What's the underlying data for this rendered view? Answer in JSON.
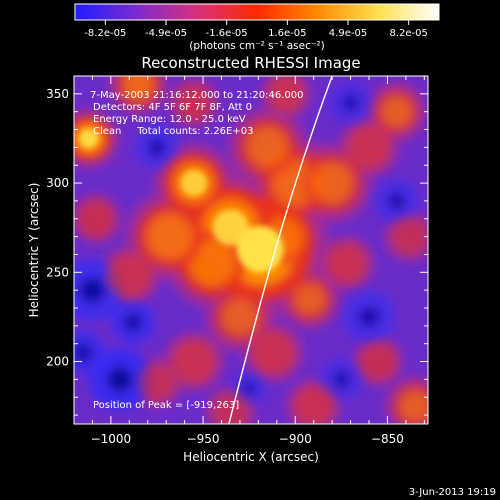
{
  "colorbar": {
    "tick_labels": [
      "-8.2e-05",
      "-4.9e-05",
      "-1.6e-05",
      "1.6e-05",
      "4.9e-05",
      "8.2e-05"
    ],
    "unit_label": "(photons cm⁻² s⁻¹ asec⁻²)",
    "range": [
      -8.2e-05,
      8.2e-05
    ],
    "stops": [
      "#1e1eff",
      "#7a2ad0",
      "#d8307e",
      "#ff2a00",
      "#ff8a00",
      "#ffe050",
      "#ffffff"
    ]
  },
  "chart_data": {
    "type": "heatmap",
    "title": "Reconstructed RHESSI Image",
    "xlabel": "Heliocentric X (arcsec)",
    "ylabel": "Heliocentric Y (arcsec)",
    "xlim": [
      -1020,
      -828
    ],
    "ylim": [
      165,
      360
    ],
    "x_ticks": [
      -1000,
      -950,
      -900,
      -850
    ],
    "y_ticks": [
      200,
      250,
      300,
      350
    ],
    "x_tick_labels": [
      "−1000",
      "−950",
      "−900",
      "−850"
    ],
    "y_tick_labels": [
      "200",
      "250",
      "300",
      "350"
    ],
    "annotations": [
      "7-May-2003 21:16:12.000 to 21:20:46.000",
      "Detectors: 4F 5F 6F 7F 8F, Att 0",
      "Energy Range: 12.0 - 25.0 keV",
      "Clean     Total counts: 2.26E+03"
    ],
    "peak_label": "Position of Peak = [-919,263]",
    "peak": [
      -919,
      263
    ],
    "limb_curve": [
      [
        -936,
        165
      ],
      [
        -920,
        230
      ],
      [
        -905,
        290
      ],
      [
        -880,
        360
      ]
    ],
    "blobs": [
      {
        "x": -919,
        "y": 263,
        "r": 28,
        "a": 1.0
      },
      {
        "x": -935,
        "y": 275,
        "r": 22,
        "a": 0.85
      },
      {
        "x": -955,
        "y": 300,
        "r": 16,
        "a": 0.8
      },
      {
        "x": -945,
        "y": 255,
        "r": 18,
        "a": 0.7
      },
      {
        "x": -968,
        "y": 270,
        "r": 18,
        "a": 0.65
      },
      {
        "x": -900,
        "y": 300,
        "r": 18,
        "a": 0.6
      },
      {
        "x": -880,
        "y": 300,
        "r": 16,
        "a": 0.55
      },
      {
        "x": -915,
        "y": 320,
        "r": 16,
        "a": 0.55
      },
      {
        "x": -905,
        "y": 270,
        "r": 15,
        "a": 0.55
      },
      {
        "x": -990,
        "y": 248,
        "r": 12,
        "a": 0.45
      },
      {
        "x": -1012,
        "y": 325,
        "r": 12,
        "a": 0.9
      },
      {
        "x": -985,
        "y": 355,
        "r": 12,
        "a": 0.6
      },
      {
        "x": -1008,
        "y": 280,
        "r": 10,
        "a": 0.4
      },
      {
        "x": -930,
        "y": 225,
        "r": 14,
        "a": 0.5
      },
      {
        "x": -912,
        "y": 205,
        "r": 12,
        "a": 0.45
      },
      {
        "x": -892,
        "y": 235,
        "r": 12,
        "a": 0.5
      },
      {
        "x": -872,
        "y": 255,
        "r": 11,
        "a": 0.45
      },
      {
        "x": -860,
        "y": 320,
        "r": 12,
        "a": 0.45
      },
      {
        "x": -845,
        "y": 340,
        "r": 12,
        "a": 0.5
      },
      {
        "x": -838,
        "y": 270,
        "r": 10,
        "a": 0.35
      },
      {
        "x": -955,
        "y": 200,
        "r": 12,
        "a": 0.45
      },
      {
        "x": -975,
        "y": 188,
        "r": 10,
        "a": 0.35
      },
      {
        "x": -935,
        "y": 172,
        "r": 10,
        "a": 0.35
      },
      {
        "x": -890,
        "y": 175,
        "r": 11,
        "a": 0.45
      },
      {
        "x": -835,
        "y": 175,
        "r": 12,
        "a": 0.5
      },
      {
        "x": -855,
        "y": 200,
        "r": 10,
        "a": 0.4
      },
      {
        "x": -955,
        "y": 345,
        "r": 10,
        "a": 0.4
      },
      {
        "x": -905,
        "y": 350,
        "r": 10,
        "a": 0.45
      }
    ],
    "cold_spots": [
      {
        "x": -995,
        "y": 190,
        "r": 14,
        "a": 1.0
      },
      {
        "x": -1010,
        "y": 240,
        "r": 14,
        "a": 0.9
      },
      {
        "x": -988,
        "y": 222,
        "r": 10,
        "a": 0.8
      },
      {
        "x": -975,
        "y": 320,
        "r": 10,
        "a": 0.7
      },
      {
        "x": -860,
        "y": 225,
        "r": 12,
        "a": 0.7
      },
      {
        "x": -845,
        "y": 290,
        "r": 10,
        "a": 0.7
      },
      {
        "x": -875,
        "y": 190,
        "r": 10,
        "a": 0.6
      },
      {
        "x": -925,
        "y": 185,
        "r": 8,
        "a": 0.6
      },
      {
        "x": -1015,
        "y": 205,
        "r": 10,
        "a": 0.8
      },
      {
        "x": -870,
        "y": 345,
        "r": 10,
        "a": 0.6
      }
    ]
  },
  "footer": {
    "date": "3-Jun-2013 19:19"
  }
}
